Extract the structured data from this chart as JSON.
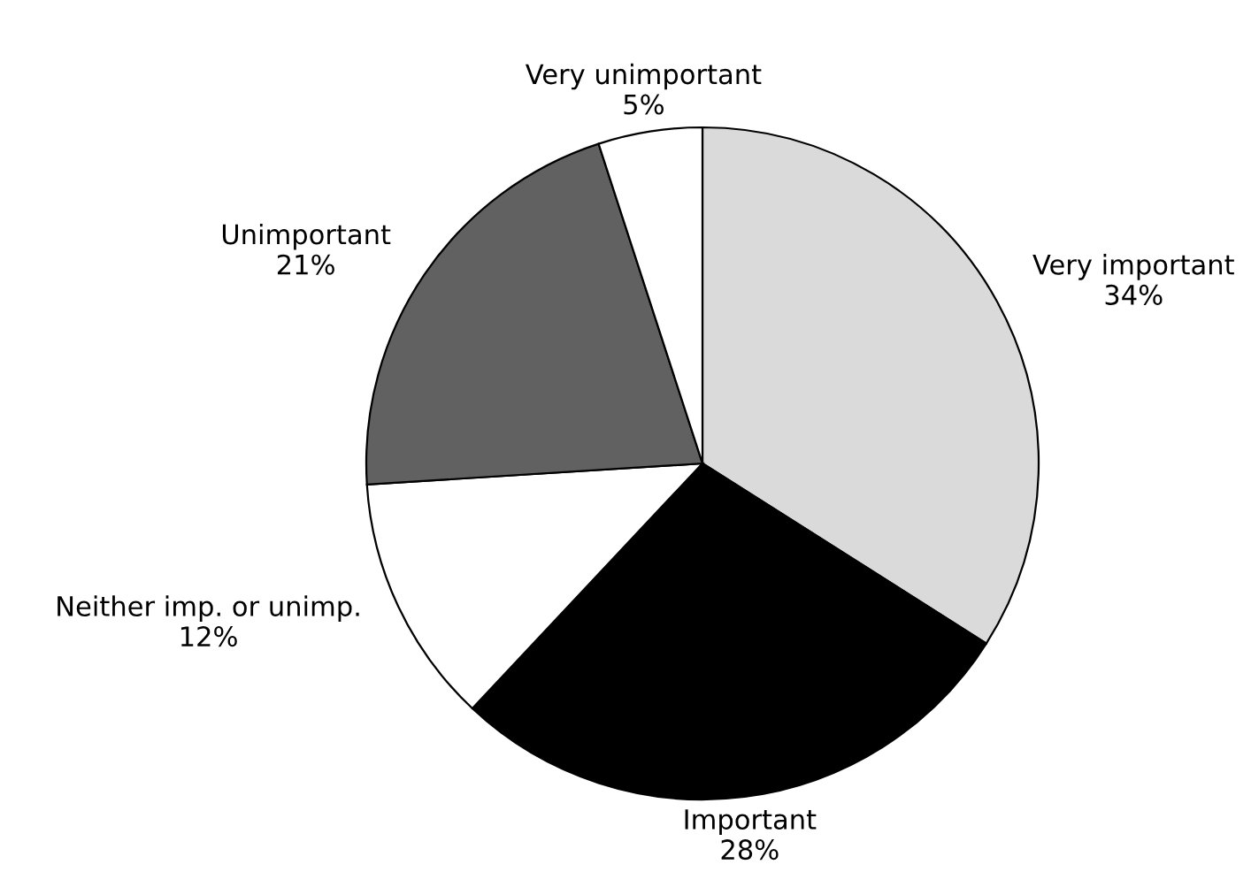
{
  "chart_data": {
    "type": "pie",
    "categories": [
      "Very important",
      "Important",
      "Neither imp. or unimp.",
      "Unimportant",
      "Very unimportant"
    ],
    "values": [
      34,
      28,
      12,
      21,
      5
    ],
    "value_labels": [
      "34%",
      "28%",
      "12%",
      "21%",
      "5%"
    ],
    "colors": [
      "#dadada",
      "#000000",
      "#ffffff",
      "#616161",
      "#ffffff"
    ]
  }
}
